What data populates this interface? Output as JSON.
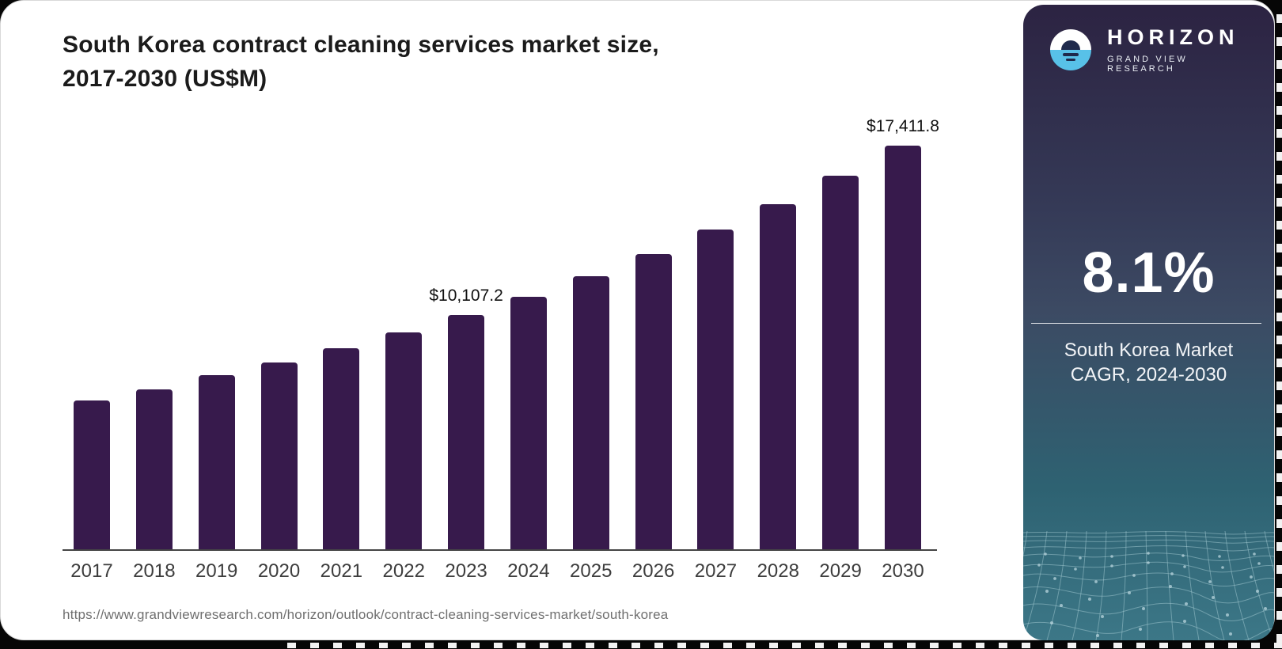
{
  "header": {
    "title_line1": "South Korea contract cleaning services market size,",
    "title_line2": "2017-2030 (US$M)"
  },
  "footer": {
    "source_url": "https://www.grandviewresearch.com/horizon/outlook/contract-cleaning-services-market/south-korea"
  },
  "chart_data": {
    "type": "bar",
    "title": "South Korea contract cleaning services market size, 2017-2030 (US$M)",
    "unit": "US$M",
    "categories": [
      "2017",
      "2018",
      "2019",
      "2020",
      "2021",
      "2022",
      "2023",
      "2024",
      "2025",
      "2026",
      "2027",
      "2028",
      "2029",
      "2030"
    ],
    "values": [
      6440,
      6925,
      7520,
      8085,
      8700,
      9370,
      10107.2,
      10911.6,
      11795.5,
      12750.9,
      13783.7,
      14900.2,
      16107.1,
      17411.8
    ],
    "value_labels": {
      "2023": "$10,107.2",
      "2030": "$17,411.8"
    },
    "xlabel": "",
    "ylabel": "",
    "ylim": [
      0,
      17411.8
    ],
    "grid": false,
    "legend": null,
    "bar_color": "#371a4c",
    "axis_color": "#454545"
  },
  "sidebar": {
    "brand": {
      "name": "HORIZON",
      "subtitle": "GRAND VIEW RESEARCH"
    },
    "stat": {
      "value": "8.1%",
      "label_line1": "South Korea Market",
      "label_line2": "CAGR, 2024-2030"
    },
    "colors": {
      "gradient_top": "#2c2342",
      "gradient_mid": "#3c4a63",
      "gradient_bottom": "#3c7787",
      "logo_blue": "#58c1e8",
      "logo_navy": "#1f2a4c",
      "mesh_line": "#a5cbd4"
    }
  }
}
